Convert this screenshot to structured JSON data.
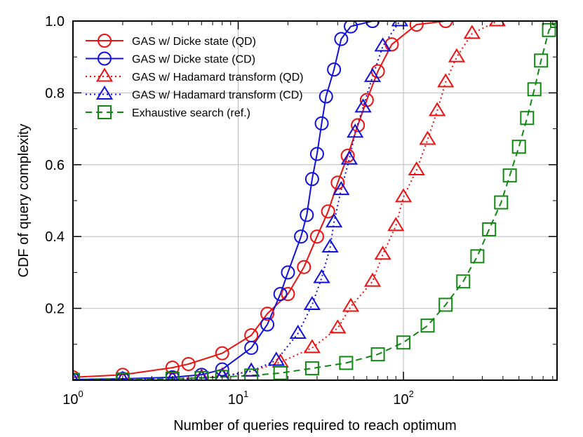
{
  "chart_data": {
    "type": "line",
    "title": "",
    "xlabel": "Number of queries required to reach optimum",
    "ylabel": "CDF of query complexity",
    "xscale": "log",
    "xlim": [
      1,
      850
    ],
    "ylim": [
      0,
      1.0
    ],
    "grid": true,
    "legend_position": "top-left",
    "x_ticks": [
      {
        "base": "10",
        "exp": "0",
        "value": 1
      },
      {
        "base": "10",
        "exp": "1",
        "value": 10
      },
      {
        "base": "10",
        "exp": "2",
        "value": 100
      }
    ],
    "y_ticks": [
      {
        "label": "0.2",
        "value": 0.2
      },
      {
        "label": "0.4",
        "value": 0.4
      },
      {
        "label": "0.6",
        "value": 0.6
      },
      {
        "label": "0.8",
        "value": 0.8
      },
      {
        "label": "1.0",
        "value": 1.0
      }
    ],
    "series": [
      {
        "name": "GAS w/ Dicke state (QD)",
        "color": "#ee1111",
        "marker": "circle",
        "dash": "solid",
        "x": [
          1,
          2,
          4,
          5,
          8,
          12,
          15,
          20,
          25,
          30,
          35,
          40,
          46,
          53,
          60,
          70,
          85,
          120,
          180
        ],
        "y": [
          0.008,
          0.015,
          0.035,
          0.045,
          0.075,
          0.125,
          0.185,
          0.24,
          0.315,
          0.4,
          0.47,
          0.55,
          0.625,
          0.71,
          0.78,
          0.86,
          0.935,
          0.99,
          1.0
        ]
      },
      {
        "name": "GAS w/ Dicke state (CD)",
        "color": "#1111dd",
        "marker": "circle",
        "dash": "solid",
        "x": [
          1,
          2,
          4,
          6,
          8,
          12,
          15,
          18,
          20,
          24,
          26,
          28,
          30,
          32,
          34,
          38,
          42,
          48,
          65
        ],
        "y": [
          0.002,
          0.004,
          0.008,
          0.015,
          0.03,
          0.09,
          0.155,
          0.24,
          0.3,
          0.4,
          0.46,
          0.56,
          0.63,
          0.715,
          0.79,
          0.865,
          0.95,
          0.985,
          1.0
        ]
      },
      {
        "name": "GAS w/ Hadamard transform (QD)",
        "color": "#ee1111",
        "marker": "triangle",
        "dash": "dotted",
        "x": [
          1,
          2,
          4,
          6,
          8,
          12,
          18,
          28,
          40,
          48,
          65,
          75,
          90,
          100,
          120,
          140,
          160,
          180,
          210,
          260,
          370
        ],
        "y": [
          0.001,
          0.002,
          0.004,
          0.008,
          0.012,
          0.025,
          0.05,
          0.09,
          0.145,
          0.205,
          0.275,
          0.35,
          0.43,
          0.51,
          0.585,
          0.67,
          0.75,
          0.83,
          0.9,
          0.965,
          1.0
        ]
      },
      {
        "name": "GAS w/ Hadamard transform (CD)",
        "color": "#1111dd",
        "marker": "triangle",
        "dash": "dotted",
        "x": [
          1,
          2,
          4,
          6,
          8,
          12,
          17,
          23,
          28,
          32,
          36,
          38,
          42,
          47,
          51,
          57,
          65,
          75,
          95
        ],
        "y": [
          0.001,
          0.002,
          0.003,
          0.005,
          0.01,
          0.025,
          0.055,
          0.13,
          0.21,
          0.285,
          0.37,
          0.44,
          0.53,
          0.615,
          0.69,
          0.76,
          0.845,
          0.93,
          1.0
        ]
      },
      {
        "name": "Exhaustive search (ref.)",
        "color": "#118811",
        "marker": "square",
        "dash": "dashed",
        "x": [
          1,
          2,
          4,
          6,
          8,
          12,
          18,
          28,
          45,
          70,
          100,
          140,
          180,
          230,
          280,
          330,
          390,
          440,
          500,
          560,
          620,
          680,
          760,
          850
        ],
        "y": [
          0.001,
          0.002,
          0.004,
          0.006,
          0.009,
          0.013,
          0.02,
          0.033,
          0.048,
          0.072,
          0.105,
          0.152,
          0.21,
          0.275,
          0.345,
          0.42,
          0.495,
          0.57,
          0.65,
          0.73,
          0.81,
          0.89,
          0.975,
          1.0
        ]
      }
    ]
  }
}
